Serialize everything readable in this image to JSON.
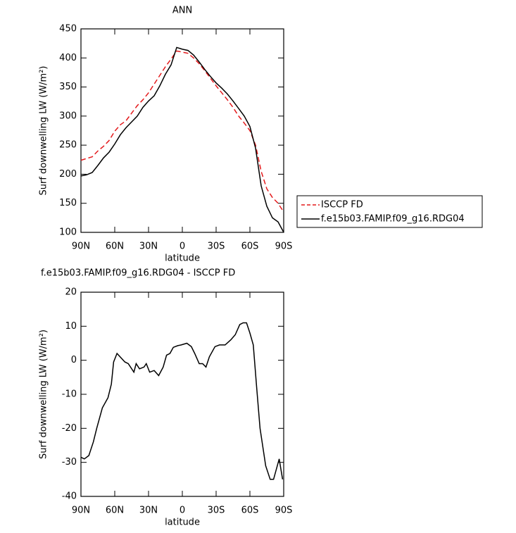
{
  "chart_data": [
    {
      "type": "line",
      "title": "ANN",
      "xlabel": "latitude",
      "ylabel": "Surf downwelling LW (W/m²)",
      "x": [
        90,
        85,
        80,
        75,
        70,
        65,
        60,
        55,
        50,
        45,
        40,
        35,
        30,
        25,
        20,
        15,
        10,
        5,
        0,
        -5,
        -10,
        -15,
        -20,
        -25,
        -30,
        -35,
        -40,
        -45,
        -50,
        -55,
        -60,
        -65,
        -70,
        -75,
        -80,
        -85,
        -90
      ],
      "series": [
        {
          "name": "ISCCP FD",
          "color": "#e41a1c",
          "linestyle": "dashed",
          "values": [
            224,
            227,
            230,
            240,
            248,
            258,
            274,
            285,
            292,
            305,
            318,
            328,
            340,
            355,
            370,
            385,
            398,
            412,
            410,
            408,
            400,
            390,
            378,
            365,
            352,
            340,
            328,
            315,
            300,
            288,
            275,
            250,
            205,
            175,
            160,
            150,
            135
          ]
        },
        {
          "name": "f.e15b03.FAMIP.f09_g16.RDG04",
          "color": "#000000",
          "linestyle": "solid",
          "values": [
            197,
            199,
            203,
            215,
            228,
            238,
            252,
            268,
            280,
            290,
            300,
            315,
            326,
            335,
            352,
            372,
            388,
            418,
            415,
            413,
            405,
            393,
            380,
            368,
            357,
            348,
            338,
            326,
            313,
            300,
            282,
            245,
            180,
            145,
            125,
            118,
            100
          ]
        }
      ],
      "xlim": [
        90,
        -90
      ],
      "xticks": [
        {
          "value": 90,
          "label": "90N"
        },
        {
          "value": 60,
          "label": "60N"
        },
        {
          "value": 30,
          "label": "30N"
        },
        0,
        {
          "value": -30,
          "label": "30S"
        },
        {
          "value": -60,
          "label": "60S"
        },
        {
          "value": -90,
          "label": "90S"
        }
      ],
      "ylim": [
        100,
        450
      ],
      "yticks": [
        100,
        150,
        200,
        250,
        300,
        350,
        400,
        450
      ],
      "legend": "right"
    },
    {
      "type": "line",
      "title": "f.e15b03.FAMIP.f09_g16.RDG04 - ISCCP FD",
      "xlabel": "latitude",
      "ylabel": "Surf downwelling LW (W/m²)",
      "x": [
        90,
        87,
        83,
        79,
        76,
        71,
        66,
        63,
        61,
        58,
        51,
        48,
        43,
        41,
        38,
        34,
        32,
        29,
        25,
        21,
        17,
        14,
        11,
        8,
        4,
        1,
        -4,
        -8,
        -11,
        -15,
        -18,
        -21,
        -24,
        -29,
        -33,
        -38,
        -43,
        -47,
        -51,
        -54,
        -57,
        -60,
        -63,
        -66,
        -69,
        -74,
        -78,
        -81,
        -86,
        -89
      ],
      "values": [
        -28.5,
        -29,
        -28,
        -24,
        -20,
        -14,
        -11,
        -7,
        -0.5,
        2,
        -0.5,
        -1,
        -3.5,
        -1,
        -2.5,
        -2,
        -1,
        -3.5,
        -3,
        -4.5,
        -2,
        1.5,
        2,
        3.8,
        4.3,
        4.5,
        5,
        4,
        2,
        -1,
        -1,
        -2,
        1,
        4,
        4.5,
        4.5,
        6,
        7.5,
        10.5,
        11,
        11,
        8,
        4.5,
        -8,
        -20,
        -31,
        -35,
        -35,
        -29,
        -35
      ],
      "color": "#000000",
      "xlim": [
        90,
        -90
      ],
      "xticks": [
        {
          "value": 90,
          "label": "90N"
        },
        {
          "value": 60,
          "label": "60N"
        },
        {
          "value": 30,
          "label": "30N"
        },
        0,
        {
          "value": -30,
          "label": "30S"
        },
        {
          "value": -60,
          "label": "60S"
        },
        {
          "value": -90,
          "label": "90S"
        }
      ],
      "ylim": [
        -40,
        20
      ],
      "yticks": [
        -40,
        -30,
        -20,
        -10,
        0,
        10,
        20
      ]
    }
  ]
}
